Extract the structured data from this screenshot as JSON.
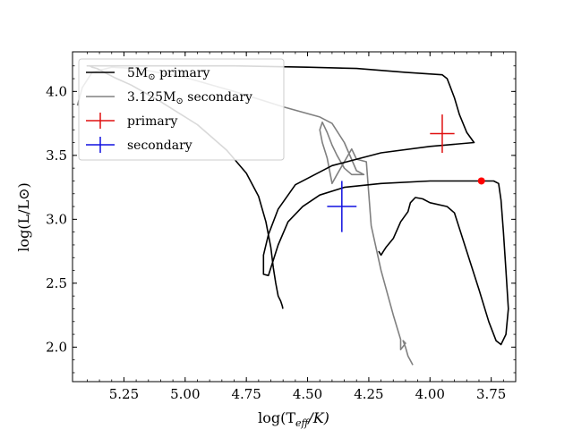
{
  "chart_data": {
    "type": "line",
    "title": "",
    "xlabel": "log(T",
    "xlabel_sub": "eff",
    "xlabel_tail": "/K)",
    "ylabel": "log(L/L⊙)",
    "xlim": [
      5.46,
      3.65
    ],
    "ylim": [
      1.73,
      4.31
    ],
    "x_inverted": true,
    "grid": false,
    "legend_placement": "top-left",
    "xticks": [
      {
        "value": 5.25,
        "label": "5.25"
      },
      {
        "value": 5.0,
        "label": "5.00"
      },
      {
        "value": 4.75,
        "label": "4.75"
      },
      {
        "value": 4.5,
        "label": "4.50"
      },
      {
        "value": 4.25,
        "label": "4.25"
      },
      {
        "value": 4.0,
        "label": "4.00"
      },
      {
        "value": 3.75,
        "label": "3.75"
      }
    ],
    "yticks": [
      {
        "value": 2.0,
        "label": "2.0"
      },
      {
        "value": 2.5,
        "label": "2.5"
      },
      {
        "value": 3.0,
        "label": "3.0"
      },
      {
        "value": 3.5,
        "label": "3.5"
      },
      {
        "value": 4.0,
        "label": "4.0"
      }
    ],
    "series": [
      {
        "name": "5M⊙ primary",
        "color": "#000000",
        "points": [
          [
            4.601,
            2.3
          ],
          [
            4.603,
            2.32
          ],
          [
            4.61,
            2.36
          ],
          [
            4.62,
            2.4
          ],
          [
            4.63,
            2.5
          ],
          [
            4.64,
            2.62
          ],
          [
            4.65,
            2.78
          ],
          [
            4.67,
            2.98
          ],
          [
            4.7,
            3.18
          ],
          [
            4.75,
            3.36
          ],
          [
            4.83,
            3.54
          ],
          [
            4.95,
            3.74
          ],
          [
            5.1,
            3.92
          ],
          [
            5.22,
            4.05
          ],
          [
            5.29,
            4.11
          ],
          [
            5.34,
            4.16
          ],
          [
            5.36,
            4.18
          ],
          [
            5.38,
            4.19
          ],
          [
            5.39,
            4.2
          ],
          [
            5.4,
            4.2
          ],
          [
            5.36,
            4.2
          ],
          [
            5.2,
            4.2
          ],
          [
            5.0,
            4.2
          ],
          [
            4.8,
            4.2
          ],
          [
            4.5,
            4.19
          ],
          [
            4.3,
            4.18
          ],
          [
            4.1,
            4.15
          ],
          [
            3.95,
            4.13
          ],
          [
            3.93,
            4.1
          ],
          [
            3.92,
            4.05
          ],
          [
            3.9,
            3.95
          ],
          [
            3.88,
            3.82
          ],
          [
            3.85,
            3.68
          ],
          [
            3.82,
            3.6
          ],
          [
            4.0,
            3.57
          ],
          [
            4.2,
            3.52
          ],
          [
            4.4,
            3.42
          ],
          [
            4.55,
            3.27
          ],
          [
            4.62,
            3.08
          ],
          [
            4.66,
            2.88
          ],
          [
            4.68,
            2.72
          ],
          [
            4.68,
            2.62
          ],
          [
            4.68,
            2.57
          ],
          [
            4.66,
            2.56
          ],
          [
            4.65,
            2.62
          ],
          [
            4.62,
            2.8
          ],
          [
            4.58,
            2.98
          ],
          [
            4.52,
            3.1
          ],
          [
            4.45,
            3.19
          ],
          [
            4.35,
            3.25
          ],
          [
            4.2,
            3.28
          ],
          [
            4.0,
            3.3
          ],
          [
            3.85,
            3.3
          ],
          [
            3.79,
            3.3
          ],
          [
            3.74,
            3.3
          ],
          [
            3.72,
            3.28
          ],
          [
            3.71,
            3.15
          ],
          [
            3.7,
            2.9
          ],
          [
            3.69,
            2.6
          ],
          [
            3.68,
            2.3
          ],
          [
            3.69,
            2.1
          ],
          [
            3.71,
            2.02
          ],
          [
            3.73,
            2.05
          ],
          [
            3.76,
            2.2
          ],
          [
            3.8,
            2.45
          ],
          [
            3.85,
            2.75
          ],
          [
            3.9,
            3.05
          ],
          [
            3.93,
            3.1
          ],
          [
            4.0,
            3.13
          ],
          [
            4.03,
            3.16
          ],
          [
            4.06,
            3.17
          ],
          [
            4.08,
            3.13
          ],
          [
            4.09,
            3.06
          ],
          [
            4.12,
            2.98
          ],
          [
            4.15,
            2.85
          ],
          [
            4.18,
            2.78
          ],
          [
            4.19,
            2.75
          ],
          [
            4.2,
            2.72
          ],
          [
            4.21,
            2.75
          ]
        ]
      },
      {
        "name": "3.125M⊙ secondary",
        "color": "#808080",
        "points": [
          [
            4.07,
            1.86
          ],
          [
            4.09,
            1.93
          ],
          [
            4.1,
            2.0
          ],
          [
            4.11,
            2.05
          ],
          [
            4.1,
            2.03
          ],
          [
            4.12,
            1.98
          ],
          [
            4.12,
            2.06
          ],
          [
            4.15,
            2.25
          ],
          [
            4.2,
            2.6
          ],
          [
            4.24,
            2.95
          ],
          [
            4.25,
            3.2
          ],
          [
            4.26,
            3.45
          ],
          [
            4.3,
            3.47
          ],
          [
            4.32,
            3.55
          ],
          [
            4.35,
            3.45
          ],
          [
            4.38,
            3.35
          ],
          [
            4.4,
            3.28
          ],
          [
            4.42,
            3.48
          ],
          [
            4.44,
            3.6
          ],
          [
            4.45,
            3.7
          ],
          [
            4.44,
            3.76
          ],
          [
            4.42,
            3.68
          ],
          [
            4.4,
            3.58
          ],
          [
            4.38,
            3.5
          ],
          [
            4.35,
            3.4
          ],
          [
            4.32,
            3.35
          ],
          [
            4.27,
            3.35
          ],
          [
            4.3,
            3.38
          ],
          [
            4.35,
            3.6
          ],
          [
            4.4,
            3.75
          ],
          [
            4.45,
            3.8
          ],
          [
            4.6,
            3.88
          ],
          [
            4.8,
            4.0
          ],
          [
            5.0,
            4.11
          ],
          [
            5.2,
            4.18
          ],
          [
            5.3,
            4.19
          ],
          [
            5.38,
            4.15
          ],
          [
            5.42,
            4.03
          ],
          [
            5.44,
            3.89
          ]
        ]
      }
    ],
    "markers": [
      {
        "name": "primary",
        "color": "#e01010",
        "x": 3.95,
        "y": 3.67,
        "xerr": 0.05,
        "yerr": 0.15
      },
      {
        "name": "secondary",
        "color": "#1010e0",
        "x": 4.36,
        "y": 3.1,
        "xerr": 0.06,
        "yerr": 0.2
      }
    ],
    "highlight_point": {
      "color": "#ff0000",
      "x": 3.79,
      "y": 3.3
    },
    "legend": [
      {
        "label": "5M",
        "label_tail": " primary",
        "sun": true,
        "color": "#000000",
        "kind": "line"
      },
      {
        "label": "3.125M",
        "label_tail": " secondary",
        "sun": true,
        "color": "#808080",
        "kind": "line"
      },
      {
        "label": "primary",
        "label_tail": "",
        "sun": false,
        "color": "#e01010",
        "kind": "errorbar"
      },
      {
        "label": "secondary",
        "label_tail": "",
        "sun": false,
        "color": "#1010e0",
        "kind": "errorbar"
      }
    ]
  }
}
